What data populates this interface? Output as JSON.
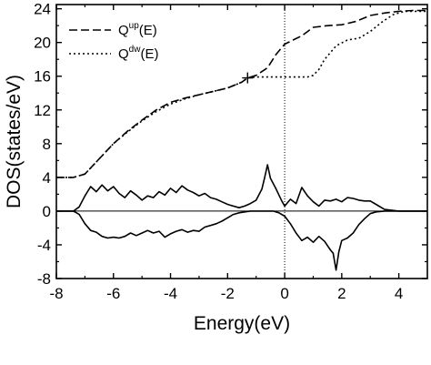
{
  "chart_data": {
    "type": "line",
    "xlabel": "Energy(eV)",
    "ylabel": "DOS(states/eV)",
    "xlim": [
      -8,
      5
    ],
    "ylim": [
      -8,
      24.5
    ],
    "xticks": [
      -8,
      -6,
      -4,
      -2,
      0,
      2,
      4
    ],
    "yticks": [
      -8,
      -4,
      0,
      4,
      8,
      12,
      16,
      20,
      24
    ],
    "grid": false,
    "legend_position": "top-left",
    "fermi_level": 0,
    "marker": {
      "x": -1.3,
      "y": 15.8,
      "symbol": "+"
    },
    "legend": [
      {
        "base": "Q",
        "sup": "up",
        "suffix": "(E)",
        "style": "dashed"
      },
      {
        "base": "Q",
        "sup": "dw",
        "suffix": "(E)",
        "style": "dotted"
      }
    ],
    "series": [
      {
        "style": "dashed",
        "x": [
          -8,
          -7.4,
          -7,
          -6.5,
          -6,
          -5.5,
          -5,
          -4.5,
          -4,
          -3.5,
          -3,
          -2.5,
          -2,
          -1.5,
          -1.3,
          -1,
          -0.6,
          -0.3,
          0,
          0.3,
          0.6,
          1,
          1.5,
          2,
          2.5,
          3,
          3.5,
          4,
          4.5,
          5
        ],
        "y": [
          4,
          4,
          4.4,
          6.2,
          8,
          9.5,
          10.8,
          12,
          12.9,
          13.4,
          13.8,
          14.2,
          14.6,
          15.3,
          15.8,
          16.1,
          17,
          18.6,
          19.8,
          20.3,
          20.8,
          21.8,
          22,
          22.1,
          22.5,
          23.2,
          23.5,
          23.7,
          23.8,
          23.8
        ]
      },
      {
        "style": "dotted",
        "x": [
          -8,
          -7.4,
          -7,
          -6.5,
          -6,
          -5.5,
          -5,
          -4.5,
          -4,
          -3.5,
          -3,
          -2.5,
          -2,
          -1.5,
          -1.3,
          -1,
          -0.6,
          -0.3,
          0,
          0.4,
          0.8,
          1,
          1.2,
          1.4,
          1.8,
          2.2,
          2.6,
          3,
          3.4,
          3.8,
          4.2,
          5
        ],
        "y": [
          4,
          4,
          4.4,
          6.2,
          8,
          9.4,
          10.7,
          11.8,
          12.7,
          13.3,
          13.8,
          14.2,
          14.6,
          15.3,
          15.8,
          15.9,
          15.9,
          15.9,
          15.9,
          15.9,
          15.9,
          16.1,
          16.8,
          18,
          19.6,
          20.3,
          20.5,
          21.3,
          22.4,
          23.3,
          23.7,
          23.7
        ]
      },
      {
        "style": "solid",
        "x": [
          -8,
          -7.4,
          -7.2,
          -7,
          -6.8,
          -6.6,
          -6.4,
          -6.2,
          -6,
          -5.8,
          -5.6,
          -5.4,
          -5.2,
          -5,
          -4.8,
          -4.6,
          -4.4,
          -4.2,
          -4,
          -3.8,
          -3.6,
          -3.4,
          -3.2,
          -3,
          -2.8,
          -2.6,
          -2.4,
          -2.2,
          -2,
          -1.8,
          -1.6,
          -1.4,
          -1.2,
          -1,
          -0.8,
          -0.7,
          -0.6,
          -0.5,
          -0.3,
          -0.1,
          0,
          0.2,
          0.4,
          0.6,
          0.8,
          1,
          1.2,
          1.4,
          1.6,
          1.8,
          2,
          2.2,
          2.4,
          2.6,
          2.8,
          3,
          3.2,
          3.5,
          4,
          5
        ],
        "y": [
          0,
          0,
          0.5,
          1.8,
          2.9,
          2.3,
          3.1,
          2.4,
          2.9,
          2.1,
          1.6,
          2.4,
          1.9,
          1.3,
          1.8,
          1.6,
          2.3,
          1.9,
          2.7,
          2.2,
          3,
          2.5,
          2.2,
          1.8,
          2.1,
          1.6,
          1.4,
          1.1,
          0.8,
          0.6,
          0.4,
          0.6,
          0.9,
          1.3,
          2.6,
          4,
          5.5,
          3.9,
          2.6,
          1.2,
          0.6,
          1.4,
          0.9,
          2.8,
          1.8,
          1.1,
          0.6,
          1.3,
          1.2,
          1.4,
          1.1,
          1.6,
          1.5,
          1.3,
          1.2,
          1.2,
          0.8,
          0.2,
          0,
          0
        ]
      },
      {
        "style": "solid",
        "x": [
          -8,
          -7.4,
          -7.2,
          -7,
          -6.8,
          -6.6,
          -6.4,
          -6.2,
          -6,
          -5.8,
          -5.6,
          -5.4,
          -5.2,
          -5,
          -4.8,
          -4.6,
          -4.4,
          -4.2,
          -4,
          -3.8,
          -3.6,
          -3.4,
          -3.2,
          -3,
          -2.8,
          -2.6,
          -2.4,
          -2.2,
          -2,
          -1.8,
          -1.6,
          -1.4,
          -1.2,
          -1,
          -0.8,
          -0.6,
          -0.4,
          -0.2,
          0,
          0.2,
          0.4,
          0.6,
          0.8,
          1,
          1.2,
          1.4,
          1.6,
          1.7,
          1.8,
          1.9,
          2,
          2.2,
          2.4,
          2.6,
          2.8,
          3,
          3.2,
          3.5,
          4,
          5
        ],
        "y": [
          0,
          0,
          -0.4,
          -1.5,
          -2.3,
          -2.5,
          -3,
          -3.2,
          -3.1,
          -3.2,
          -3,
          -2.6,
          -2.9,
          -2.6,
          -2.3,
          -2.6,
          -2.4,
          -3.1,
          -2.7,
          -2.4,
          -2.2,
          -2.5,
          -2.3,
          -2.4,
          -1.9,
          -1.7,
          -1.5,
          -1.2,
          -0.8,
          -0.4,
          -0.2,
          -0.1,
          0,
          0,
          0,
          0,
          0,
          -0.2,
          -0.6,
          -1.5,
          -2.6,
          -3.5,
          -3.1,
          -3.7,
          -3,
          -3.6,
          -4.6,
          -5,
          -7,
          -4.8,
          -3.5,
          -3.2,
          -2.6,
          -1.6,
          -0.9,
          -0.3,
          -0.1,
          0,
          0,
          0
        ]
      }
    ]
  }
}
